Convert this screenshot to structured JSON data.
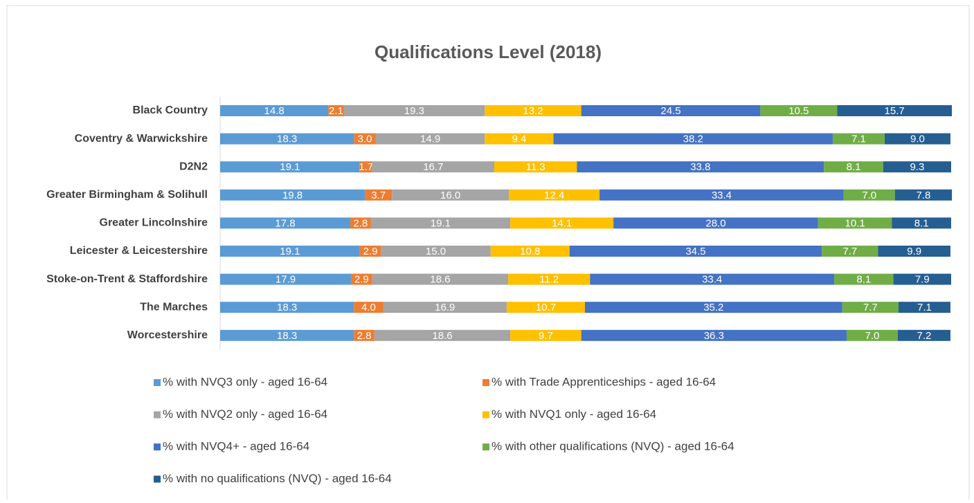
{
  "chart_data": {
    "type": "stacked-bar",
    "orientation": "horizontal",
    "title": "Qualifications Level (2018)",
    "categories": [
      "Black Country",
      "Coventry & Warwickshire",
      "D2N2",
      "Greater Birmingham & Solihull",
      "Greater Lincolnshire",
      "Leicester & Leicestershire",
      "Stoke-on-Trent & Staffordshire",
      "The Marches",
      "Worcestershire"
    ],
    "xlim": [
      0,
      100
    ],
    "series": [
      {
        "name": "% with NVQ3 only - aged 16-64",
        "color": "#5b9bd5",
        "values": [
          14.8,
          18.3,
          19.1,
          19.8,
          17.8,
          19.1,
          17.9,
          18.3,
          18.3
        ],
        "value_labels": [
          "14.8",
          "18.3",
          "19.1",
          "19.8",
          "17.8",
          "19.1",
          "17.9",
          "18.3",
          "18.3"
        ]
      },
      {
        "name": "% with Trade Apprenticeships - aged 16-64",
        "color": "#ed7d31",
        "values": [
          2.1,
          3.0,
          1.7,
          3.7,
          2.8,
          2.9,
          2.9,
          4.0,
          2.8
        ],
        "value_labels": [
          "2.1",
          "3.0",
          "1.7",
          "3.7",
          "2.8",
          "2.9",
          "2.9",
          "4.0",
          "2.8"
        ]
      },
      {
        "name": "% with NVQ2 only - aged 16-64",
        "color": "#a5a5a5",
        "values": [
          19.3,
          14.9,
          16.7,
          16.0,
          19.1,
          15.0,
          18.6,
          16.9,
          18.6
        ],
        "value_labels": [
          "19.3",
          "14.9",
          "16.7",
          "16.0",
          "19.1",
          "15.0",
          "18.6",
          "16.9",
          "18.6"
        ]
      },
      {
        "name": "% with NVQ1 only - aged 16-64",
        "color": "#ffc000",
        "values": [
          13.2,
          9.4,
          11.3,
          12.4,
          14.1,
          10.8,
          11.2,
          10.7,
          9.7
        ],
        "value_labels": [
          "13.2",
          "9.4",
          "11.3",
          "12.4",
          "14.1",
          "10.8",
          "11.2",
          "10.7",
          "9.7"
        ]
      },
      {
        "name": "% with NVQ4+ - aged 16-64",
        "color": "#4472c4",
        "values": [
          24.5,
          38.2,
          33.8,
          33.4,
          28.0,
          34.5,
          33.4,
          35.2,
          36.3
        ],
        "value_labels": [
          "24.5",
          "38.2",
          "33.8",
          "33.4",
          "28.0",
          "34.5",
          "33.4",
          "35.2",
          "36.3"
        ]
      },
      {
        "name": "% with other qualifications (NVQ) - aged 16-64",
        "color": "#70ad47",
        "values": [
          10.5,
          7.1,
          8.1,
          7.0,
          10.1,
          7.7,
          8.1,
          7.7,
          7.0
        ],
        "value_labels": [
          "10.5",
          "7.1",
          "8.1",
          "7.0",
          "10.1",
          "7.7",
          "8.1",
          "7.7",
          "7.0"
        ]
      },
      {
        "name": "% with no qualifications (NVQ) - aged 16-64",
        "color": "#255e91",
        "values": [
          15.7,
          9.0,
          9.3,
          7.8,
          8.1,
          9.9,
          7.9,
          7.1,
          7.2
        ],
        "value_labels": [
          "15.7",
          "9.0",
          "9.3",
          "7.8",
          "8.1",
          "9.9",
          "7.9",
          "7.1",
          "7.2"
        ]
      }
    ]
  }
}
